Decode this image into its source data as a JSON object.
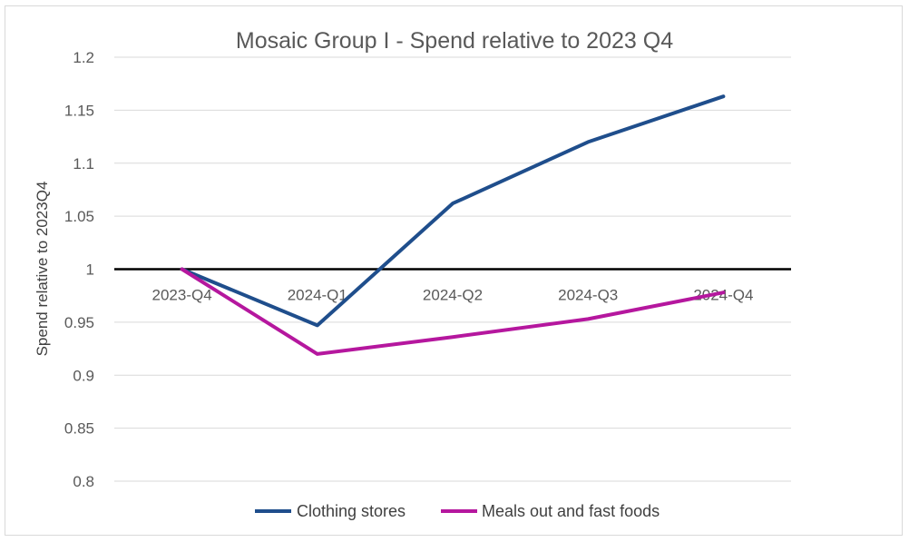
{
  "chart_data": {
    "type": "line",
    "title": "Mosaic Group I - Spend relative to 2023 Q4",
    "xlabel": "",
    "ylabel": "Spend relative to 2023Q4",
    "categories": [
      "2023-Q4",
      "2024-Q1",
      "2024-Q2",
      "2024-Q3",
      "2024-Q4"
    ],
    "ylim": [
      0.8,
      1.2
    ],
    "yticks": [
      "0.8",
      "0.85",
      "0.9",
      "0.95",
      "1",
      "1.05",
      "1.1",
      "1.15",
      "1.2"
    ],
    "baseline": 1,
    "grid": true,
    "legend_position": "bottom",
    "series": [
      {
        "name": "Clothing stores",
        "color": "#1f4e8c",
        "values": [
          1.0,
          0.947,
          1.062,
          1.12,
          1.163
        ]
      },
      {
        "name": "Meals out and fast foods",
        "color": "#b5179e",
        "values": [
          1.0,
          0.92,
          0.936,
          0.953,
          0.978
        ]
      }
    ]
  }
}
